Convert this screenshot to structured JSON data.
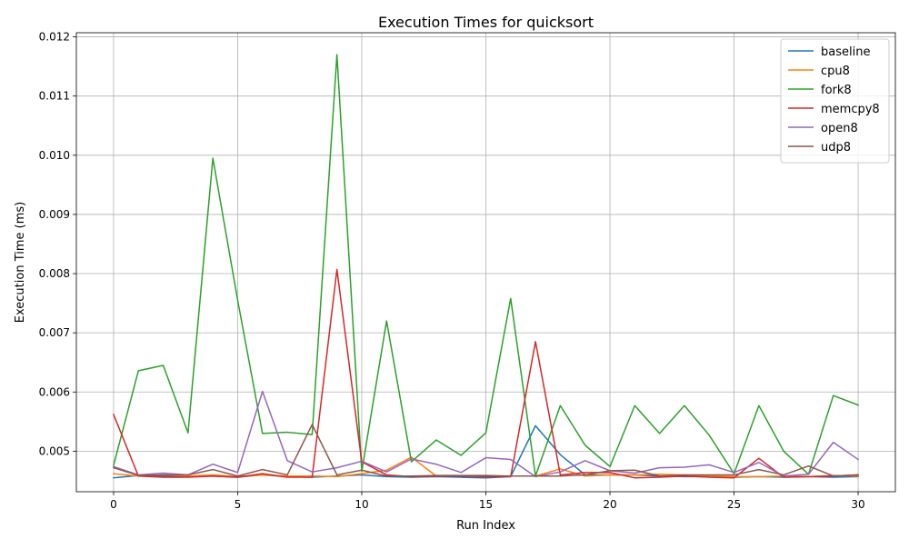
{
  "chart_data": {
    "type": "line",
    "title": "Execution Times for quicksort",
    "xlabel": "Run Index",
    "ylabel": "Execution Time (ms)",
    "xlim": [
      -1.5,
      31.5
    ],
    "ylim": [
      0.004315,
      0.01207
    ],
    "x_ticks": [
      0,
      5,
      10,
      15,
      20,
      25,
      30
    ],
    "y_ticks": [
      0.005,
      0.006,
      0.007,
      0.008,
      0.009,
      0.01,
      0.011,
      0.012
    ],
    "y_tick_labels": [
      "0.005",
      "0.006",
      "0.007",
      "0.008",
      "0.009",
      "0.010",
      "0.011",
      "0.012"
    ],
    "grid": true,
    "legend_position": "top-right",
    "x": [
      0,
      1,
      2,
      3,
      4,
      5,
      6,
      7,
      8,
      9,
      10,
      11,
      12,
      13,
      14,
      15,
      16,
      17,
      18,
      19,
      20,
      21,
      22,
      23,
      24,
      25,
      26,
      27,
      28,
      29,
      30
    ],
    "series": [
      {
        "name": "baseline",
        "color": "#1f77b4",
        "values": [
          0.00455,
          0.00459,
          0.00458,
          0.00457,
          0.00458,
          0.00456,
          0.0046,
          0.00457,
          0.00456,
          0.00458,
          0.0046,
          0.00457,
          0.00456,
          0.00457,
          0.00456,
          0.00455,
          0.00457,
          0.00543,
          0.00494,
          0.0046,
          0.0046,
          0.0046,
          0.00458,
          0.00457,
          0.00457,
          0.00456,
          0.00457,
          0.00456,
          0.00457,
          0.00456,
          0.00457
        ]
      },
      {
        "name": "cpu8",
        "color": "#ff7f0e",
        "values": [
          0.00462,
          0.00458,
          0.0046,
          0.00458,
          0.0046,
          0.00457,
          0.0046,
          0.00458,
          0.00458,
          0.00457,
          0.00462,
          0.00468,
          0.0049,
          0.00458,
          0.00458,
          0.00458,
          0.00458,
          0.00458,
          0.0047,
          0.00458,
          0.0046,
          0.0046,
          0.00461,
          0.0046,
          0.00458,
          0.00457,
          0.00457,
          0.00458,
          0.00457,
          0.00459,
          0.00458
        ]
      },
      {
        "name": "fork8",
        "color": "#2ca02c",
        "values": [
          0.00476,
          0.00636,
          0.00645,
          0.00531,
          0.00995,
          0.00755,
          0.0053,
          0.00532,
          0.00528,
          0.0117,
          0.00466,
          0.0072,
          0.00482,
          0.00519,
          0.00493,
          0.00531,
          0.00758,
          0.00458,
          0.00577,
          0.0051,
          0.00474,
          0.00577,
          0.0053,
          0.00577,
          0.00527,
          0.00462,
          0.00577,
          0.005,
          0.00461,
          0.00594,
          0.00578
        ]
      },
      {
        "name": "memcpy8",
        "color": "#d62728",
        "values": [
          0.00562,
          0.00458,
          0.00456,
          0.00456,
          0.00458,
          0.00456,
          0.00462,
          0.00456,
          0.00456,
          0.00807,
          0.00482,
          0.0046,
          0.00457,
          0.00458,
          0.00458,
          0.00457,
          0.00457,
          0.00685,
          0.0046,
          0.00464,
          0.00464,
          0.00455,
          0.00456,
          0.00458,
          0.00456,
          0.00455,
          0.00488,
          0.00456,
          0.00457,
          0.00458,
          0.0046
        ]
      },
      {
        "name": "open8",
        "color": "#9467bd",
        "values": [
          0.00474,
          0.0046,
          0.00463,
          0.0046,
          0.00478,
          0.00464,
          0.00601,
          0.00484,
          0.00465,
          0.00472,
          0.00483,
          0.00465,
          0.00487,
          0.00478,
          0.00464,
          0.00489,
          0.00486,
          0.00457,
          0.00465,
          0.00484,
          0.00467,
          0.00463,
          0.00472,
          0.00473,
          0.00477,
          0.00464,
          0.00481,
          0.00458,
          0.00461,
          0.00515,
          0.00486
        ]
      },
      {
        "name": "udp8",
        "color": "#8c564b",
        "values": [
          0.00472,
          0.00459,
          0.0046,
          0.0046,
          0.00469,
          0.00458,
          0.00469,
          0.0046,
          0.00545,
          0.0046,
          0.00468,
          0.00458,
          0.00458,
          0.00459,
          0.00459,
          0.00459,
          0.00458,
          0.00458,
          0.00458,
          0.0046,
          0.00467,
          0.00468,
          0.00458,
          0.0046,
          0.0046,
          0.0046,
          0.00469,
          0.0046,
          0.00475,
          0.00458,
          0.0046
        ]
      }
    ]
  }
}
